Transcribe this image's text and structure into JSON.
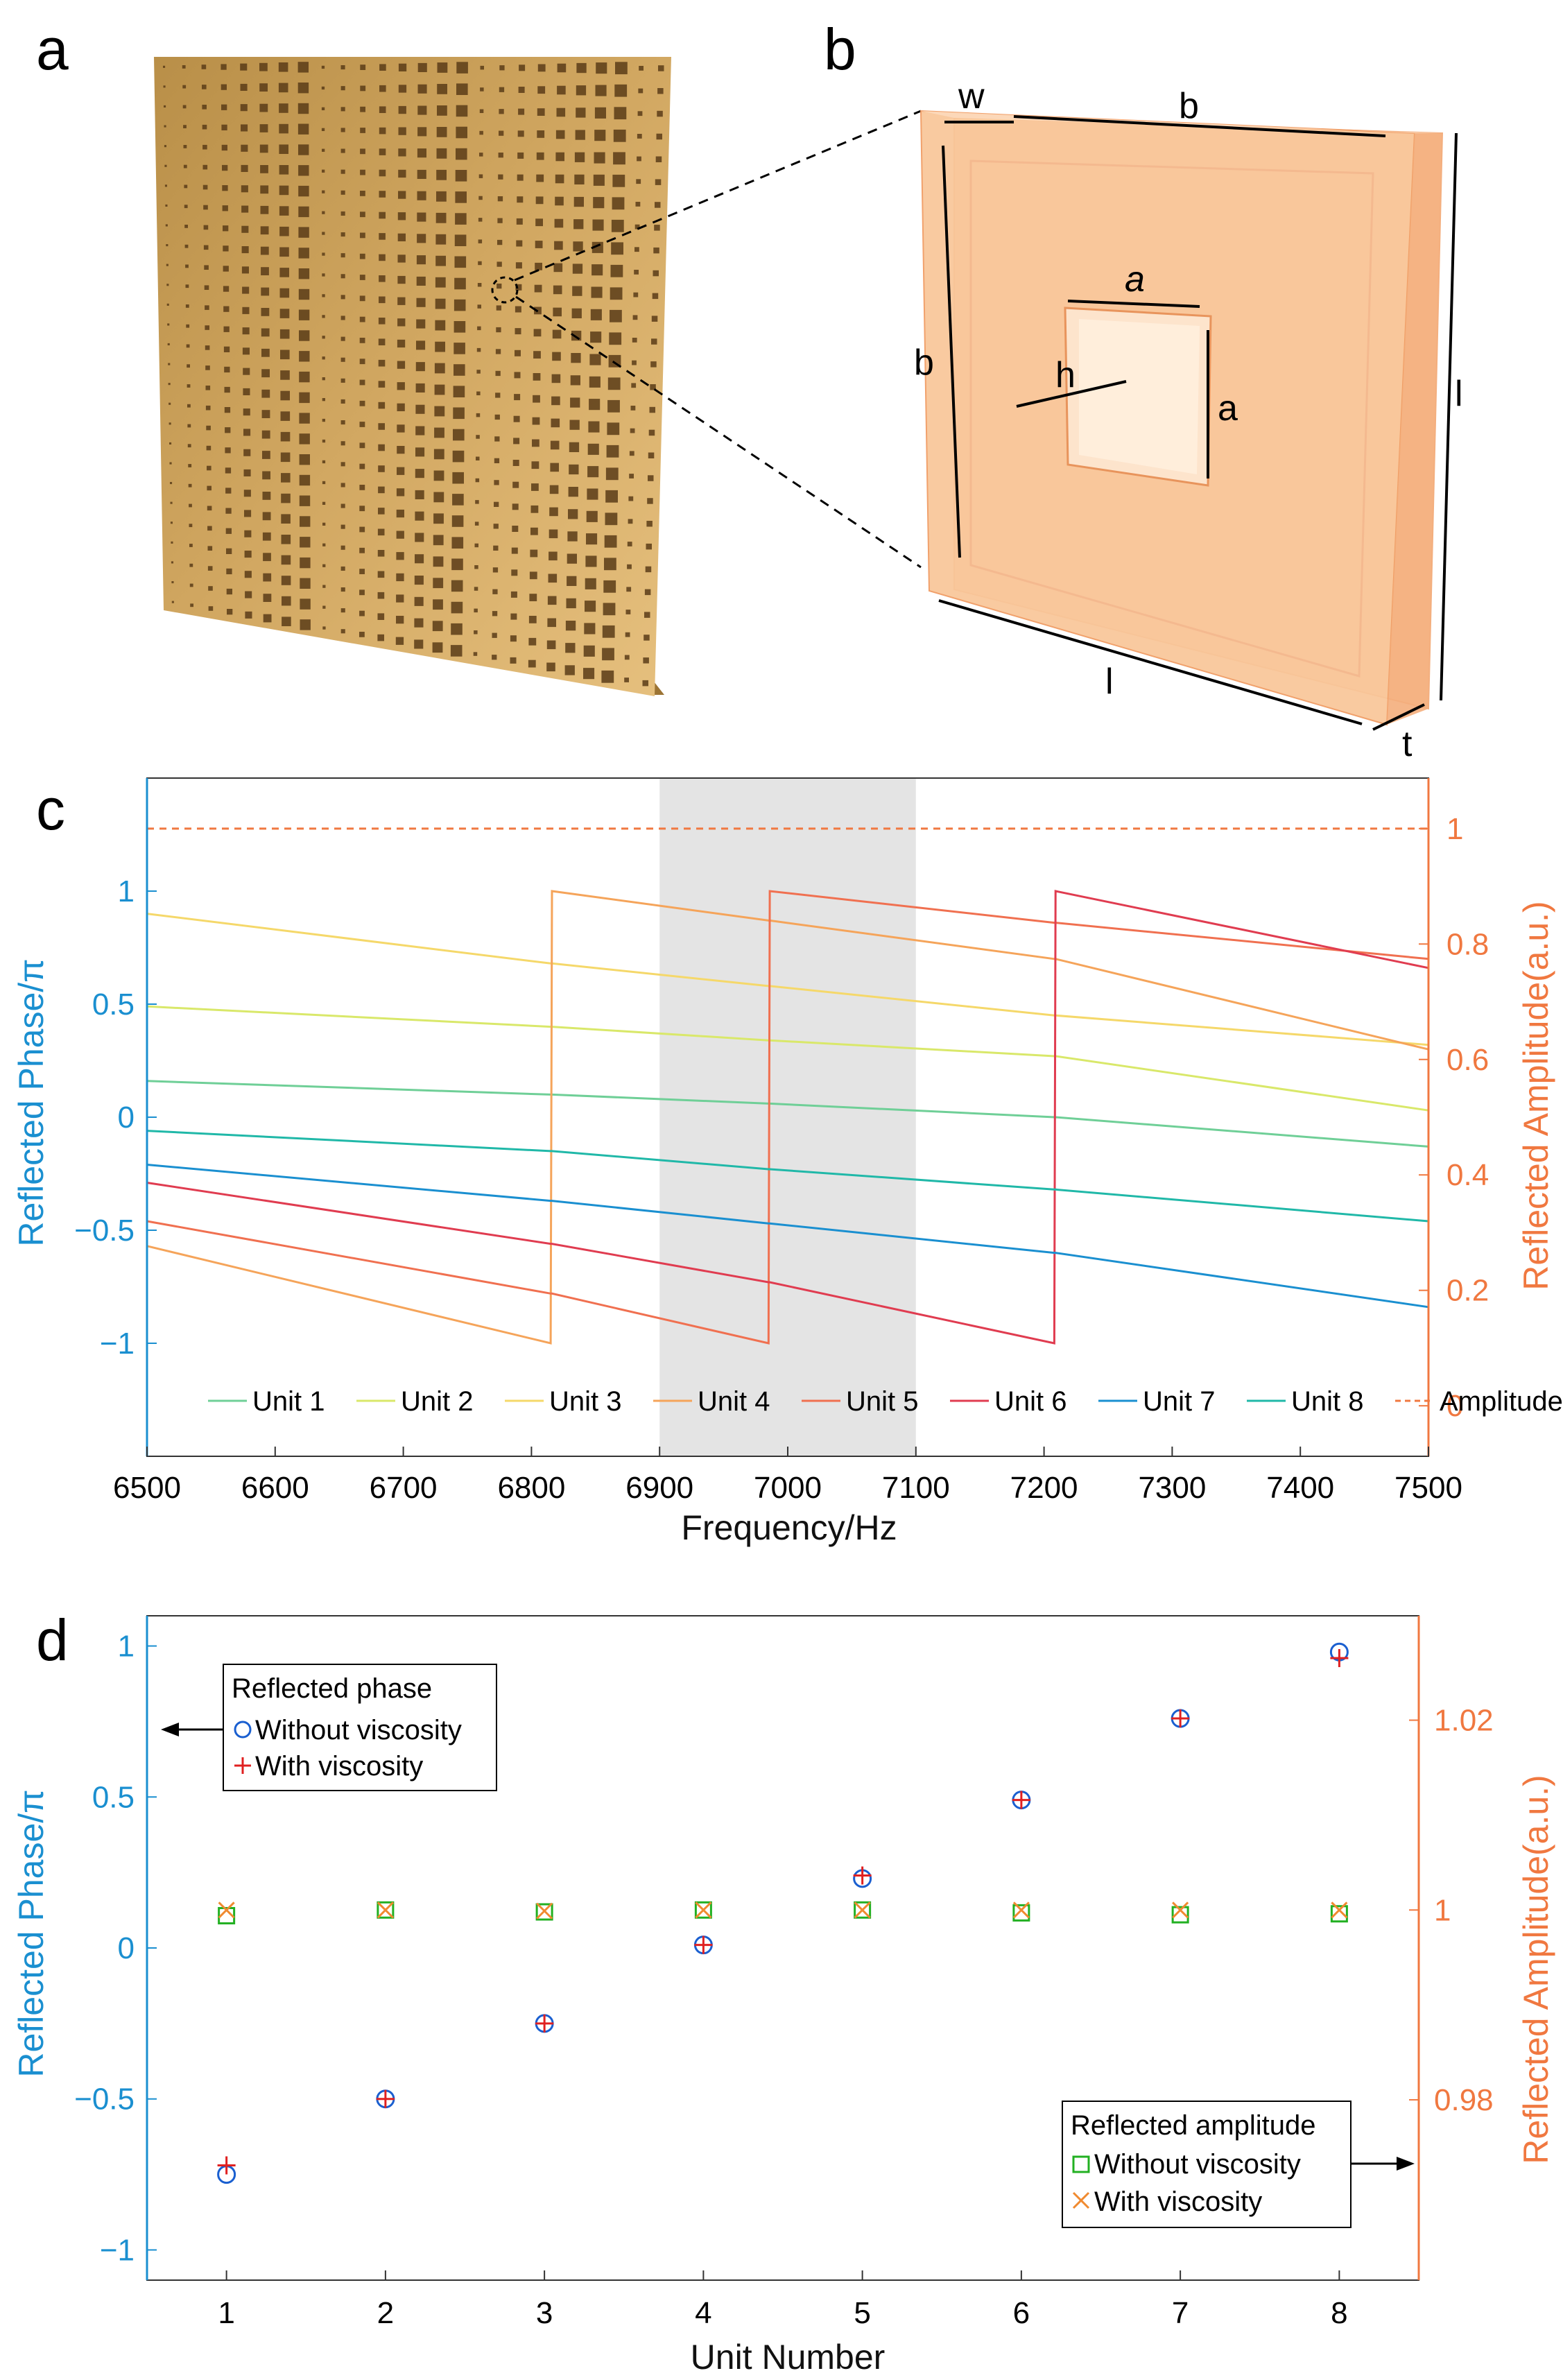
{
  "panels": {
    "a": {
      "label": "a"
    },
    "b": {
      "label": "b",
      "dims": [
        "w",
        "b",
        "b",
        "a",
        "a",
        "h",
        "l",
        "l",
        "t"
      ]
    },
    "c": {
      "label": "c"
    },
    "d": {
      "label": "d"
    }
  },
  "colors": {
    "left_axis": "#1a8fd0",
    "right_axis": "#f07840",
    "plate": "#c8a05a",
    "unit_block": "#f8c597"
  },
  "chart_data": [
    {
      "id": "c",
      "type": "line",
      "xlabel": "Frequency/Hz",
      "ylabel_left": "Reflected Phase/π",
      "ylabel_right": "Reflected Amplitude(a.u.)",
      "xlim": [
        6500,
        7500
      ],
      "ylim_left": [
        -1.5,
        1.5
      ],
      "ylim_right": [
        -0.0875,
        1.0875
      ],
      "xticks": [
        "6500",
        "6600",
        "6700",
        "6800",
        "6900",
        "7000",
        "7100",
        "7200",
        "7300",
        "7400",
        "7500"
      ],
      "yticks_left": [
        "1",
        "0.5",
        "0",
        "-0.5",
        "-1"
      ],
      "yticks_right": [
        "1",
        "0.8",
        "0.6",
        "0.4",
        "0.2",
        "0"
      ],
      "highlight_band": [
        6900,
        7100
      ],
      "x": [
        6500,
        6815,
        6816,
        6985,
        6986,
        7208,
        7209,
        7500
      ],
      "series": [
        {
          "name": "Unit 1",
          "color": "#6fcf97",
          "values": [
            0.16,
            0.1,
            0.1,
            0.06,
            0.06,
            0.0,
            0.0,
            -0.13
          ]
        },
        {
          "name": "Unit 2",
          "color": "#d9e86a",
          "values": [
            0.49,
            0.4,
            0.4,
            0.34,
            0.34,
            0.27,
            0.27,
            0.03
          ]
        },
        {
          "name": "Unit 3",
          "color": "#f5d86a",
          "values": [
            0.9,
            0.68,
            0.68,
            0.58,
            0.58,
            0.45,
            0.45,
            0.32
          ]
        },
        {
          "name": "Unit 4",
          "color": "#f5a45a",
          "values": [
            -0.57,
            -1.0,
            1.0,
            0.87,
            0.87,
            0.7,
            0.7,
            0.3
          ]
        },
        {
          "name": "Unit 5",
          "color": "#f07050",
          "values": [
            -0.46,
            -0.78,
            -0.78,
            -1.0,
            1.0,
            0.86,
            0.86,
            0.7
          ]
        },
        {
          "name": "Unit 6",
          "color": "#e03c50",
          "values": [
            -0.29,
            -0.56,
            -0.56,
            -0.73,
            -0.73,
            -1.0,
            1.0,
            0.66
          ]
        },
        {
          "name": "Unit 7",
          "color": "#1a8fd0",
          "values": [
            -0.21,
            -0.37,
            -0.37,
            -0.47,
            -0.47,
            -0.6,
            -0.6,
            -0.84
          ]
        },
        {
          "name": "Unit 8",
          "color": "#20b8a8",
          "values": [
            -0.06,
            -0.15,
            -0.15,
            -0.23,
            -0.23,
            -0.32,
            -0.32,
            -0.46
          ]
        }
      ],
      "amplitude_series": {
        "name": "Amplitude",
        "color": "#f07840",
        "value": 1.0
      },
      "legend": [
        "Unit 1",
        "Unit 2",
        "Unit 3",
        "Unit 4",
        "Unit 5",
        "Unit 6",
        "Unit 7",
        "Unit 8",
        "Amplitude"
      ],
      "legend_position": "bottom"
    },
    {
      "id": "d",
      "type": "scatter",
      "xlabel": "Unit Number",
      "ylabel_left": "Reflected Phase/π",
      "ylabel_right": "Reflected Amplitude(a.u.)",
      "xlim": [
        0.5,
        8.5
      ],
      "ylim_left": [
        -1.1,
        1.1
      ],
      "ylim_right": [
        0.961,
        1.031
      ],
      "xticks": [
        "1",
        "2",
        "3",
        "4",
        "5",
        "6",
        "7",
        "8"
      ],
      "yticks_left": [
        "1",
        "0.5",
        "0",
        "-0.5",
        "-1"
      ],
      "yticks_right": [
        "1.02",
        "1",
        "0.98"
      ],
      "x": [
        1,
        2,
        3,
        4,
        5,
        6,
        7,
        8
      ],
      "phase_without_viscosity": [
        -0.75,
        -0.5,
        -0.25,
        0.01,
        0.23,
        0.49,
        0.76,
        0.98
      ],
      "phase_with_viscosity": [
        -0.72,
        -0.5,
        -0.25,
        0.01,
        0.24,
        0.49,
        0.76,
        0.96
      ],
      "amp_without_viscosity": [
        0.9994,
        1.0,
        0.9998,
        1.0,
        1.0,
        0.9997,
        0.9995,
        0.9996
      ],
      "amp_with_viscosity": [
        1.0,
        1.0,
        0.9999,
        1.0,
        1.0,
        1.0,
        1.0,
        1.0
      ],
      "legend_phase": {
        "title": "Reflected phase",
        "items": [
          "Without viscosity",
          "With viscosity"
        ]
      },
      "legend_amp": {
        "title": "Reflected amplitude",
        "items": [
          "Without viscosity",
          "With viscosity"
        ]
      }
    }
  ]
}
